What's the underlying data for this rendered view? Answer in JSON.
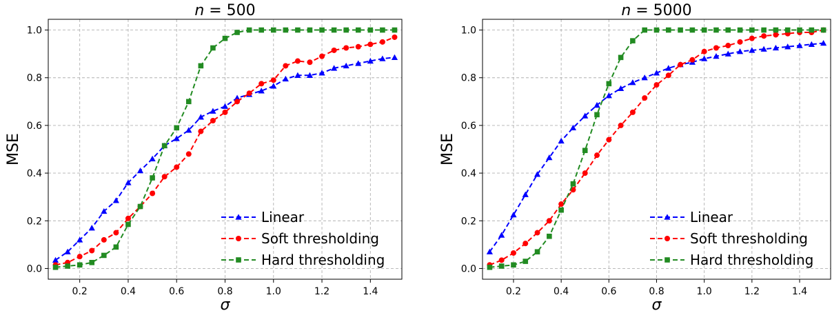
{
  "chart_data": [
    {
      "type": "line",
      "title": "n = 500",
      "title_italic": "n",
      "title_rest": " = 500",
      "xlabel": "σ",
      "ylabel": "MSE",
      "xlim": [
        0.07,
        1.53
      ],
      "ylim": [
        -0.045,
        1.045
      ],
      "xticks": [
        0.2,
        0.4,
        0.6,
        0.8,
        1.0,
        1.2,
        1.4
      ],
      "xtick_labels": [
        "0.2",
        "0.4",
        "0.6",
        "0.8",
        "1.0",
        "1.2",
        "1.4"
      ],
      "yticks": [
        0.0,
        0.2,
        0.4,
        0.6,
        0.8,
        1.0
      ],
      "ytick_labels": [
        "0.0",
        "0.2",
        "0.4",
        "0.6",
        "0.8",
        "1.0"
      ],
      "grid": true,
      "legend_position": "lower-right",
      "x": [
        0.1,
        0.15,
        0.2,
        0.25,
        0.3,
        0.35,
        0.4,
        0.45,
        0.5,
        0.55,
        0.6,
        0.65,
        0.7,
        0.75,
        0.8,
        0.85,
        0.9,
        0.95,
        1.0,
        1.05,
        1.1,
        1.15,
        1.2,
        1.25,
        1.3,
        1.35,
        1.4,
        1.45,
        1.5
      ],
      "series": [
        {
          "name": "Linear",
          "color": "#0000ff",
          "marker": "triangle",
          "values": [
            0.035,
            0.07,
            0.12,
            0.17,
            0.24,
            0.285,
            0.36,
            0.41,
            0.46,
            0.515,
            0.545,
            0.58,
            0.635,
            0.66,
            0.68,
            0.715,
            0.73,
            0.745,
            0.765,
            0.795,
            0.81,
            0.81,
            0.82,
            0.84,
            0.85,
            0.86,
            0.87,
            0.88,
            0.885
          ]
        },
        {
          "name": "Soft thresholding",
          "color": "#ff0000",
          "marker": "circle",
          "values": [
            0.015,
            0.025,
            0.05,
            0.075,
            0.12,
            0.15,
            0.21,
            0.26,
            0.315,
            0.385,
            0.425,
            0.48,
            0.575,
            0.62,
            0.655,
            0.7,
            0.735,
            0.775,
            0.79,
            0.85,
            0.87,
            0.865,
            0.89,
            0.915,
            0.925,
            0.93,
            0.94,
            0.95,
            0.97
          ]
        },
        {
          "name": "Hard thresholding",
          "color": "#228b22",
          "marker": "square",
          "values": [
            0.005,
            0.01,
            0.015,
            0.025,
            0.055,
            0.09,
            0.185,
            0.26,
            0.38,
            0.515,
            0.59,
            0.7,
            0.85,
            0.925,
            0.965,
            0.99,
            1.0,
            1.0,
            1.0,
            1.0,
            1.0,
            1.0,
            1.0,
            1.0,
            1.0,
            1.0,
            1.0,
            1.0,
            1.0
          ]
        }
      ]
    },
    {
      "type": "line",
      "title": "n = 5000",
      "title_italic": "n",
      "title_rest": " = 5000",
      "xlabel": "σ",
      "ylabel": "MSE",
      "xlim": [
        0.07,
        1.53
      ],
      "ylim": [
        -0.045,
        1.045
      ],
      "xticks": [
        0.2,
        0.4,
        0.6,
        0.8,
        1.0,
        1.2,
        1.4
      ],
      "xtick_labels": [
        "0.2",
        "0.4",
        "0.6",
        "0.8",
        "1.0",
        "1.2",
        "1.4"
      ],
      "yticks": [
        0.0,
        0.2,
        0.4,
        0.6,
        0.8,
        1.0
      ],
      "ytick_labels": [
        "0.0",
        "0.2",
        "0.4",
        "0.6",
        "0.8",
        "1.0"
      ],
      "grid": true,
      "legend_position": "lower-right",
      "x": [
        0.1,
        0.15,
        0.2,
        0.25,
        0.3,
        0.35,
        0.4,
        0.45,
        0.5,
        0.55,
        0.6,
        0.65,
        0.7,
        0.75,
        0.8,
        0.85,
        0.9,
        0.95,
        1.0,
        1.05,
        1.1,
        1.15,
        1.2,
        1.25,
        1.3,
        1.35,
        1.4,
        1.45,
        1.5
      ],
      "series": [
        {
          "name": "Linear",
          "color": "#0000ff",
          "marker": "triangle",
          "values": [
            0.07,
            0.14,
            0.225,
            0.31,
            0.395,
            0.465,
            0.535,
            0.59,
            0.64,
            0.685,
            0.725,
            0.755,
            0.78,
            0.8,
            0.82,
            0.84,
            0.855,
            0.865,
            0.88,
            0.89,
            0.9,
            0.91,
            0.915,
            0.92,
            0.925,
            0.93,
            0.935,
            0.94,
            0.945
          ]
        },
        {
          "name": "Soft thresholding",
          "color": "#ff0000",
          "marker": "circle",
          "values": [
            0.015,
            0.035,
            0.065,
            0.105,
            0.15,
            0.2,
            0.27,
            0.33,
            0.4,
            0.475,
            0.54,
            0.6,
            0.655,
            0.715,
            0.77,
            0.81,
            0.855,
            0.875,
            0.91,
            0.925,
            0.935,
            0.95,
            0.965,
            0.975,
            0.98,
            0.985,
            0.99,
            0.99,
            1.0
          ]
        },
        {
          "name": "Hard thresholding",
          "color": "#228b22",
          "marker": "square",
          "values": [
            0.005,
            0.01,
            0.015,
            0.03,
            0.07,
            0.135,
            0.245,
            0.355,
            0.495,
            0.645,
            0.775,
            0.885,
            0.955,
            1.0,
            1.0,
            1.0,
            1.0,
            1.0,
            1.0,
            1.0,
            1.0,
            1.0,
            1.0,
            1.0,
            1.0,
            1.0,
            1.0,
            1.0,
            1.0
          ]
        }
      ]
    }
  ]
}
